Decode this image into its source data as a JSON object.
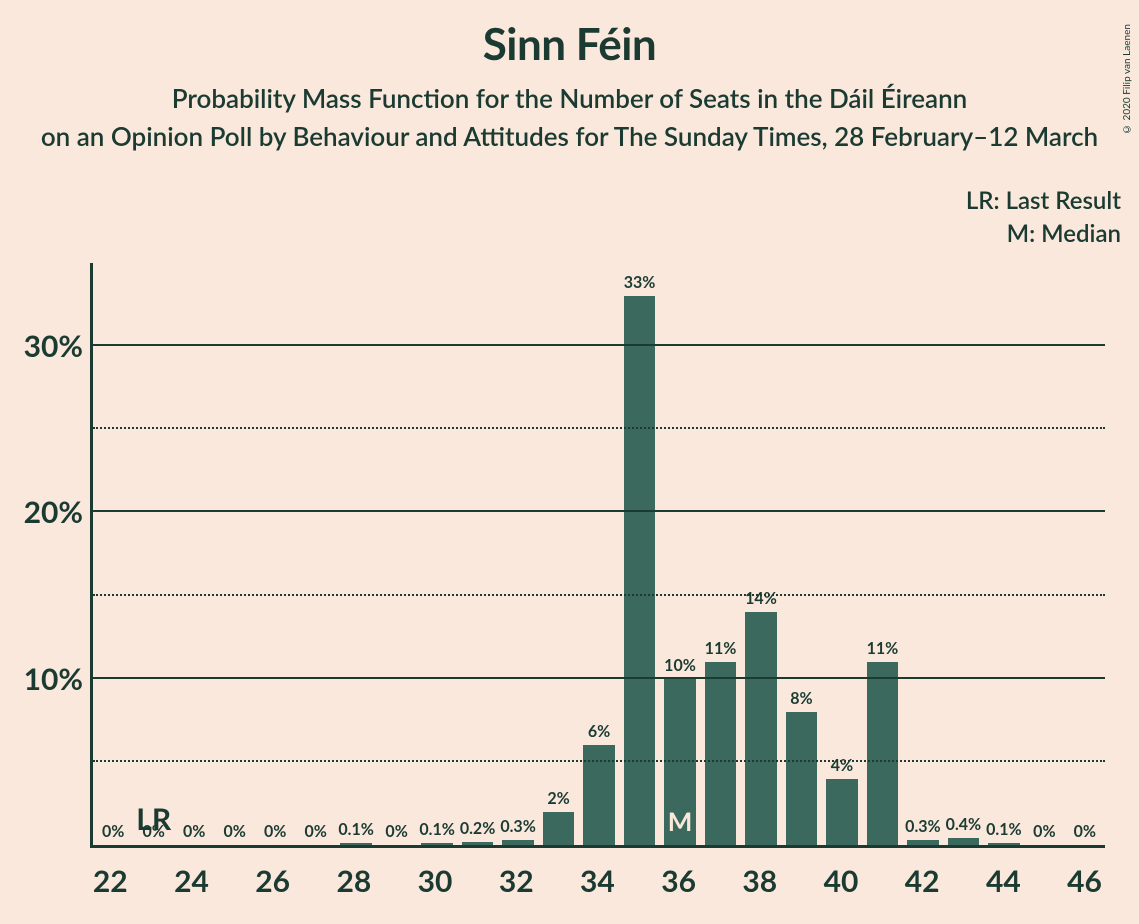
{
  "chart": {
    "type": "bar",
    "title": "Sinn Féin",
    "subtitle1": "Probability Mass Function for the Number of Seats in the Dáil Éireann",
    "subtitle2": "on an Opinion Poll by Behaviour and Attitudes for The Sunday Times, 28 February–12 March",
    "copyright": "© 2020 Filip van Laenen",
    "legend": {
      "lr": "LR: Last Result",
      "m": "M: Median"
    },
    "y_axis": {
      "max_percent": 35,
      "major_ticks": [
        10,
        20,
        30
      ],
      "minor_ticks": [
        5,
        15,
        25
      ],
      "label_suffix": "%"
    },
    "x_axis": {
      "start": 22,
      "end": 46,
      "label_every": 2
    },
    "colors": {
      "background": "#f9e8db",
      "bar": "#3c695e",
      "text": "#1a3a32",
      "mark_text": "#f9e8db"
    },
    "lr_seat": 23,
    "median_seat": 36,
    "bars": [
      {
        "seat": 22,
        "value": 0,
        "label": "0%"
      },
      {
        "seat": 23,
        "value": 0,
        "label": "0%"
      },
      {
        "seat": 24,
        "value": 0,
        "label": "0%"
      },
      {
        "seat": 25,
        "value": 0,
        "label": "0%"
      },
      {
        "seat": 26,
        "value": 0,
        "label": "0%"
      },
      {
        "seat": 27,
        "value": 0,
        "label": "0%"
      },
      {
        "seat": 28,
        "value": 0.1,
        "label": "0.1%"
      },
      {
        "seat": 29,
        "value": 0,
        "label": "0%"
      },
      {
        "seat": 30,
        "value": 0.1,
        "label": "0.1%"
      },
      {
        "seat": 31,
        "value": 0.2,
        "label": "0.2%"
      },
      {
        "seat": 32,
        "value": 0.3,
        "label": "0.3%"
      },
      {
        "seat": 33,
        "value": 2,
        "label": "2%"
      },
      {
        "seat": 34,
        "value": 6,
        "label": "6%"
      },
      {
        "seat": 35,
        "value": 33,
        "label": "33%"
      },
      {
        "seat": 36,
        "value": 10,
        "label": "10%"
      },
      {
        "seat": 37,
        "value": 11,
        "label": "11%"
      },
      {
        "seat": 38,
        "value": 14,
        "label": "14%"
      },
      {
        "seat": 39,
        "value": 8,
        "label": "8%"
      },
      {
        "seat": 40,
        "value": 4,
        "label": "4%"
      },
      {
        "seat": 41,
        "value": 11,
        "label": "11%"
      },
      {
        "seat": 42,
        "value": 0.3,
        "label": "0.3%"
      },
      {
        "seat": 43,
        "value": 0.4,
        "label": "0.4%"
      },
      {
        "seat": 44,
        "value": 0.1,
        "label": "0.1%"
      },
      {
        "seat": 45,
        "value": 0,
        "label": "0%"
      },
      {
        "seat": 46,
        "value": 0,
        "label": "0%"
      }
    ]
  }
}
